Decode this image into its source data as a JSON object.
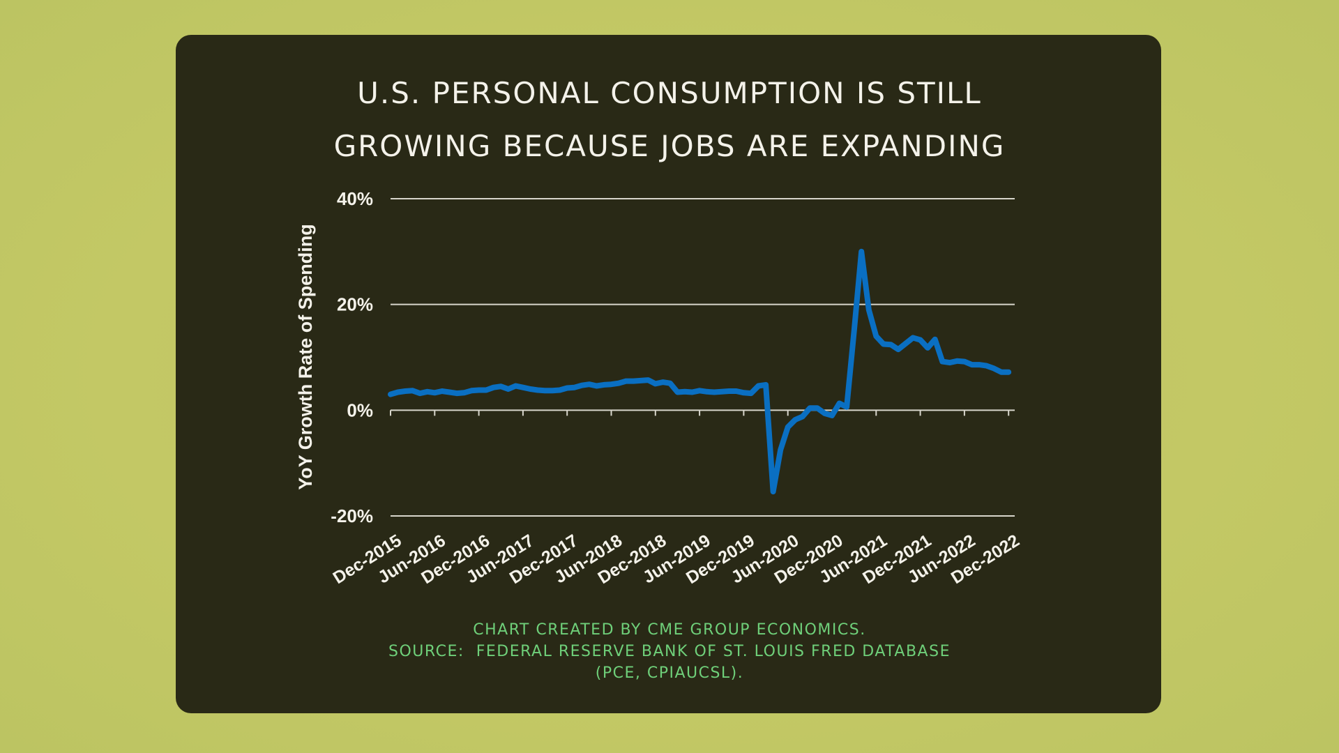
{
  "page": {
    "background_color": "#c2c767",
    "card_color": "#292916"
  },
  "title": {
    "line1": "U.S. PERSONAL CONSUMPTION IS STILL",
    "line2": "GROWING BECAUSE JOBS ARE EXPANDING"
  },
  "footer": {
    "line1": "CHART CREATED BY CME GROUP ECONOMICS.",
    "line2": "SOURCE:  FEDERAL RESERVE BANK OF ST. LOUIS FRED DATABASE",
    "line3": "(PCE, CPIAUCSL).",
    "color": "#6fd07a"
  },
  "chart_data": {
    "type": "line",
    "title": "U.S. PERSONAL CONSUMPTION IS STILL GROWING BECAUSE JOBS ARE EXPANDING",
    "xlabel": "",
    "ylabel": "YoY Growth Rate of Spending",
    "ylim": [
      -20,
      40
    ],
    "yticks": [
      40,
      20,
      0,
      -20
    ],
    "ytick_labels": [
      "40%",
      "20%",
      "0%",
      "-20%"
    ],
    "x_start": "Dec-2015",
    "x_end": "Dec-2022",
    "x_frequency": "monthly",
    "xtick_labels": [
      "Dec-2015",
      "Jun-2016",
      "Dec-2016",
      "Jun-2017",
      "Dec-2017",
      "Jun-2018",
      "Dec-2018",
      "Jun-2019",
      "Dec-2019",
      "Jun-2020",
      "Dec-2020",
      "Jun-2021",
      "Dec-2021",
      "Jun-2022",
      "Dec-2022"
    ],
    "xtick_every_months": 6,
    "grid": "horizontal",
    "legend": "none",
    "series": [
      {
        "name": "YoY Growth Rate of Spending",
        "color": "#0a6fc2",
        "values": [
          3.0,
          3.4,
          3.6,
          3.7,
          3.2,
          3.5,
          3.3,
          3.6,
          3.4,
          3.2,
          3.3,
          3.7,
          3.8,
          3.8,
          4.3,
          4.5,
          4.0,
          4.6,
          4.3,
          4.0,
          3.8,
          3.7,
          3.7,
          3.8,
          4.2,
          4.3,
          4.7,
          4.9,
          4.6,
          4.8,
          4.9,
          5.1,
          5.5,
          5.5,
          5.6,
          5.7,
          5.0,
          5.3,
          5.1,
          3.4,
          3.5,
          3.4,
          3.7,
          3.5,
          3.4,
          3.5,
          3.6,
          3.6,
          3.3,
          3.2,
          4.6,
          4.8,
          -15.4,
          -7.5,
          -3.2,
          -1.8,
          -1.2,
          0.4,
          0.4,
          -0.6,
          -1.0,
          1.3,
          0.6,
          15.0,
          30.0,
          19.0,
          14.0,
          12.5,
          12.4,
          11.5,
          12.6,
          13.7,
          13.3,
          11.8,
          13.4,
          9.2,
          9.0,
          9.3,
          9.2,
          8.6,
          8.6,
          8.4,
          7.9,
          7.2,
          7.2
        ]
      }
    ]
  }
}
